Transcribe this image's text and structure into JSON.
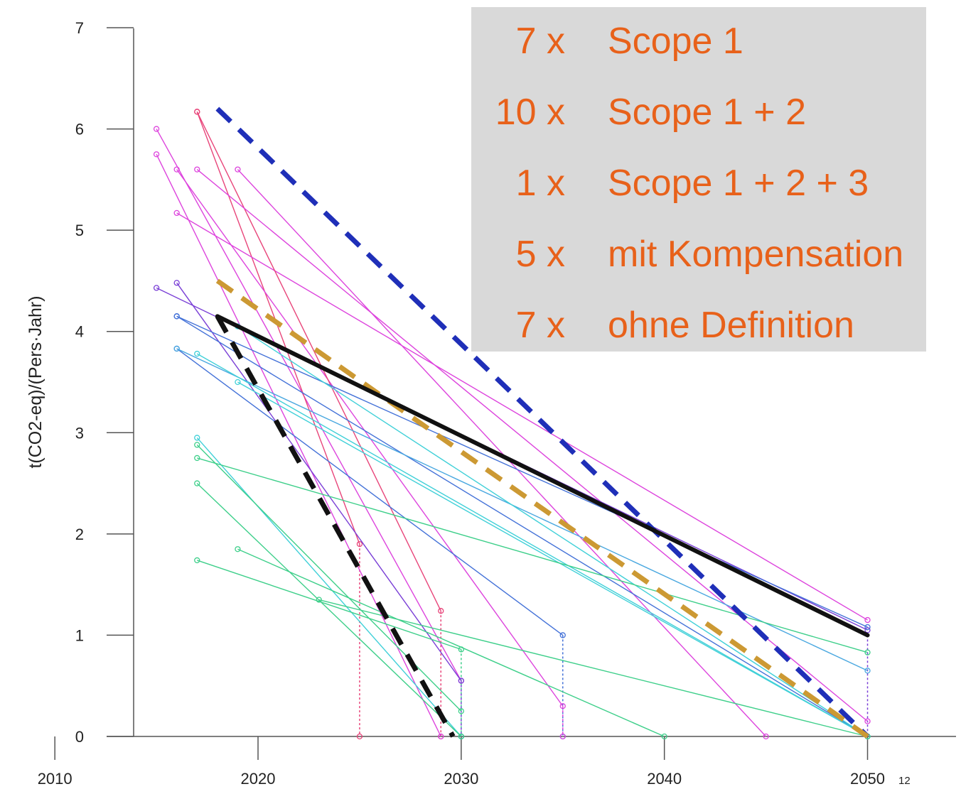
{
  "chart_data": {
    "type": "line",
    "ylabel": "t(CO2-eq)/(Pers·Jahr)",
    "xlabel": "",
    "xlim": [
      2007.3,
      2054.6
    ],
    "ylim": [
      0,
      7
    ],
    "x_ticks": [
      2010,
      2020,
      2030,
      2040,
      2050
    ],
    "y_ticks": [
      0,
      1,
      2,
      3,
      4,
      5,
      6,
      7
    ],
    "grid": false,
    "series": [
      {
        "color": "#dd44dd",
        "style": "thin",
        "points": [
          [
            2015,
            6.0
          ],
          [
            2030,
            0.55
          ]
        ]
      },
      {
        "color": "#e8457a",
        "style": "thin",
        "points": [
          [
            2017,
            6.17
          ],
          [
            2025,
            1.9
          ]
        ]
      },
      {
        "color": "#dd44dd",
        "style": "thin",
        "points": [
          [
            2015,
            5.75
          ],
          [
            2029,
            0.0
          ]
        ]
      },
      {
        "color": "#dd44dd",
        "style": "thin",
        "points": [
          [
            2016,
            5.6
          ],
          [
            2035,
            0.3
          ]
        ]
      },
      {
        "color": "#dd44dd",
        "style": "thin",
        "points": [
          [
            2019,
            5.6
          ],
          [
            2045,
            0.0
          ]
        ]
      },
      {
        "color": "#dd44dd",
        "style": "thin",
        "points": [
          [
            2016,
            5.17
          ],
          [
            2050,
            1.15
          ]
        ]
      },
      {
        "color": "#e8457a",
        "style": "thin",
        "points": [
          [
            2017,
            6.17
          ],
          [
            2029,
            1.24
          ]
        ]
      },
      {
        "color": "#dd44dd",
        "style": "thin",
        "points": [
          [
            2017,
            5.6
          ],
          [
            2050,
            0.15
          ]
        ]
      },
      {
        "color": "#7a3fd6",
        "style": "thin",
        "points": [
          [
            2015,
            4.43
          ],
          [
            2050,
            1.05
          ]
        ]
      },
      {
        "color": "#7a3fd6",
        "style": "thin",
        "points": [
          [
            2016,
            4.48
          ],
          [
            2030,
            0.55
          ]
        ]
      },
      {
        "color": "#4472d8",
        "style": "thin",
        "points": [
          [
            2016,
            4.15
          ],
          [
            2050,
            1.08
          ]
        ]
      },
      {
        "color": "#4472d8",
        "style": "thin",
        "points": [
          [
            2016,
            3.83
          ],
          [
            2035,
            1.0
          ]
        ]
      },
      {
        "color": "#4472d8",
        "style": "thin",
        "points": [
          [
            2016,
            4.15
          ],
          [
            2050,
            0.0
          ]
        ]
      },
      {
        "color": "#4aa8e0",
        "style": "thin",
        "points": [
          [
            2016,
            3.83
          ],
          [
            2050,
            0.65
          ]
        ]
      },
      {
        "color": "#40d0d8",
        "style": "thin",
        "points": [
          [
            2017,
            3.78
          ],
          [
            2050,
            0.0
          ]
        ]
      },
      {
        "color": "#40d0d8",
        "style": "thin",
        "points": [
          [
            2019,
            3.5
          ],
          [
            2050,
            0.0
          ]
        ]
      },
      {
        "color": "#40d0d8",
        "style": "thin",
        "points": [
          [
            2019,
            4.05
          ],
          [
            2050,
            0.0
          ]
        ]
      },
      {
        "color": "#40d0d8",
        "style": "thin",
        "points": [
          [
            2017,
            2.95
          ],
          [
            2030,
            0.0
          ]
        ]
      },
      {
        "color": "#3ecf8a",
        "style": "thin",
        "points": [
          [
            2017,
            2.88
          ],
          [
            2030,
            0.25
          ]
        ]
      },
      {
        "color": "#3ecf8a",
        "style": "thin",
        "points": [
          [
            2017,
            2.75
          ],
          [
            2050,
            0.83
          ]
        ]
      },
      {
        "color": "#3ecf8a",
        "style": "thin",
        "points": [
          [
            2017,
            2.5
          ],
          [
            2030,
            0.0
          ]
        ]
      },
      {
        "color": "#3ecf8a",
        "style": "thin",
        "points": [
          [
            2017,
            1.74
          ],
          [
            2030,
            0.86
          ]
        ]
      },
      {
        "color": "#3ecf8a",
        "style": "thin",
        "points": [
          [
            2019,
            1.85
          ],
          [
            2040,
            0.0
          ]
        ]
      },
      {
        "color": "#3ecf8a",
        "style": "thin",
        "points": [
          [
            2023,
            1.35
          ],
          [
            2050,
            0.0
          ]
        ]
      },
      {
        "color": "#1f2fb8",
        "style": "dashed-thick",
        "points": [
          [
            2018,
            6.2
          ],
          [
            2050,
            0.0
          ]
        ]
      },
      {
        "color": "#cc9933",
        "style": "dashed-thick",
        "points": [
          [
            2018,
            4.5
          ],
          [
            2050,
            0.0
          ]
        ]
      },
      {
        "color": "#111111",
        "style": "dashed-thick",
        "points": [
          [
            2018,
            4.15
          ],
          [
            2029.6,
            0.0
          ]
        ]
      },
      {
        "color": "#111111",
        "style": "solid-thick",
        "points": [
          [
            2018,
            4.15
          ],
          [
            2050,
            1.0
          ]
        ]
      }
    ],
    "drop_lines": [
      {
        "x": 2025,
        "y": 1.9,
        "color": "#e8457a"
      },
      {
        "x": 2029,
        "y": 1.24,
        "color": "#e8457a"
      },
      {
        "x": 2030,
        "y": 0.86,
        "color": "#3ecf8a"
      },
      {
        "x": 2030,
        "y": 0.55,
        "color": "#7a3fd6"
      },
      {
        "x": 2035,
        "y": 1.0,
        "color": "#4472d8"
      },
      {
        "x": 2035,
        "y": 0.3,
        "color": "#dd44dd"
      },
      {
        "x": 2050,
        "y": 1.0,
        "color": "#7a3fd6"
      }
    ]
  },
  "legend": {
    "background": "#d9d9d9",
    "text_color": "#e8611a",
    "items": [
      {
        "count": "7 x",
        "label": "Scope 1"
      },
      {
        "count": "10 x",
        "label": "Scope 1 + 2"
      },
      {
        "count": "1 x",
        "label": "Scope 1 + 2 + 3"
      },
      {
        "count": "5 x",
        "label": "mit Kompensation"
      },
      {
        "count": "7 x",
        "label": "ohne Definition"
      }
    ]
  },
  "page_number": "12"
}
